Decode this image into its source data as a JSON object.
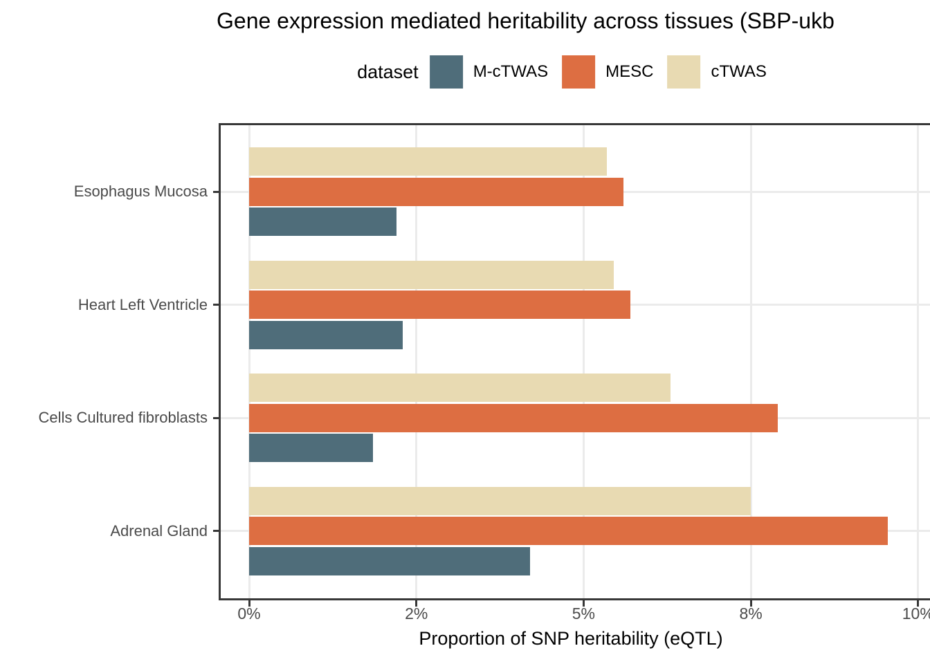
{
  "title": "Gene expression mediated heritability across tissues (SBP-ukb",
  "legend": {
    "title": "dataset",
    "items": [
      {
        "label": "M-cTWAS",
        "color": "#4F6D7A"
      },
      {
        "label": "MESC",
        "color": "#DD6E42"
      },
      {
        "label": "cTWAS",
        "color": "#E8DAB2"
      }
    ]
  },
  "x_axis": {
    "label": "Proportion of SNP heritability (eQTL)",
    "tick_labels": [
      "0%",
      "2%",
      "5%",
      "8%",
      "10%"
    ]
  },
  "chart_data": {
    "type": "bar",
    "orientation": "horizontal",
    "title": "Gene expression mediated heritability across tissues (SBP-ukb",
    "xlabel": "Proportion of SNP heritability (eQTL)",
    "ylabel": "",
    "units": "percent",
    "categories": [
      "Esophagus Mucosa",
      "Heart Left Ventricle",
      "Cells Cultured fibroblasts",
      "Adrenal Gland"
    ],
    "series": [
      {
        "name": "M-cTWAS",
        "color": "#4F6D7A",
        "values": [
          2.2,
          2.3,
          1.85,
          4.2
        ]
      },
      {
        "name": "MESC",
        "color": "#DD6E42",
        "values": [
          5.6,
          5.7,
          7.9,
          9.55
        ]
      },
      {
        "name": "cTWAS",
        "color": "#E8DAB2",
        "values": [
          5.35,
          5.45,
          6.3,
          7.5
        ]
      }
    ],
    "bar_order_within_group_top_to_bottom": [
      "cTWAS",
      "MESC",
      "M-cTWAS"
    ],
    "x_tick_values": [
      0,
      2.5,
      5,
      7.5,
      10
    ],
    "x_tick_labels": [
      "0%",
      "2%",
      "5%",
      "8%",
      "10%"
    ],
    "xlim": [
      0,
      10
    ],
    "grid": true,
    "legend_position": "top"
  }
}
